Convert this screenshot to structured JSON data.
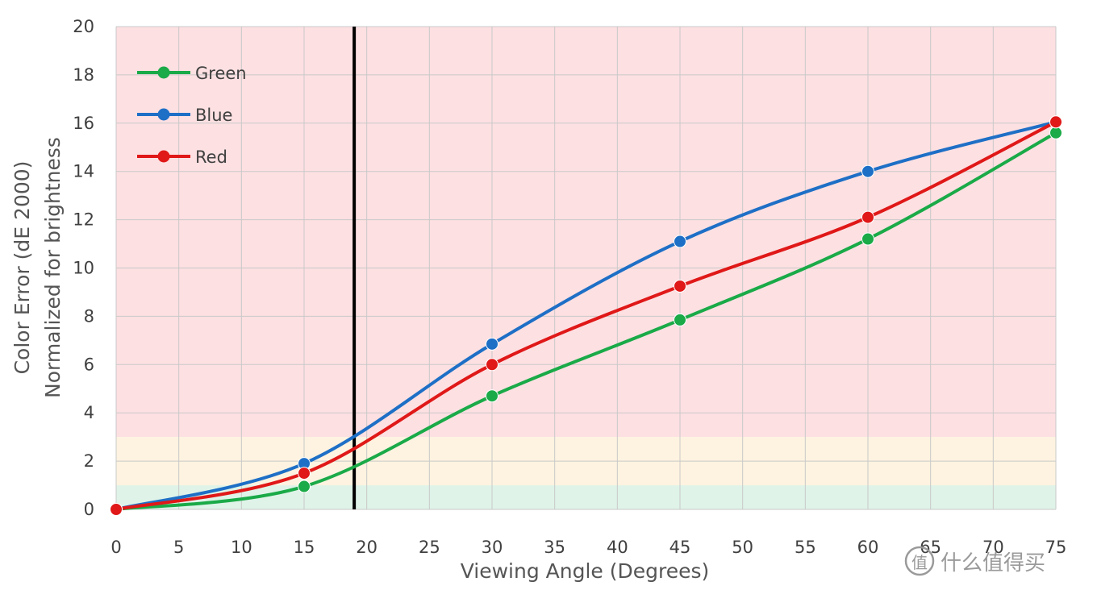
{
  "chart_data": {
    "type": "line",
    "title": "",
    "xlabel": "Viewing Angle (Degrees)",
    "ylabel_lines": [
      "Color Error (dE 2000)",
      "Normalized for brightness"
    ],
    "xlim": [
      0,
      75
    ],
    "ylim": [
      0,
      20
    ],
    "x_ticks": [
      0,
      5,
      10,
      15,
      20,
      25,
      30,
      35,
      40,
      45,
      50,
      55,
      60,
      65,
      70,
      75
    ],
    "y_ticks": [
      0,
      2,
      4,
      6,
      8,
      10,
      12,
      14,
      16,
      18,
      20
    ],
    "grid": true,
    "x": [
      0,
      15,
      30,
      45,
      60,
      75
    ],
    "series": [
      {
        "name": "Green",
        "color": "#1aaa48",
        "values": [
          0,
          0.95,
          4.7,
          7.85,
          11.2,
          15.6
        ]
      },
      {
        "name": "Blue",
        "color": "#1e6fc6",
        "values": [
          0,
          1.9,
          6.85,
          11.1,
          14.0,
          16.05
        ]
      },
      {
        "name": "Red",
        "color": "#e01818",
        "values": [
          0,
          1.5,
          6.0,
          9.25,
          12.1,
          16.05
        ]
      }
    ],
    "bands": [
      {
        "from": 0,
        "to": 1,
        "color": "#dff3e8"
      },
      {
        "from": 1,
        "to": 3,
        "color": "#fdf3e0"
      },
      {
        "from": 3,
        "to": 20,
        "color": "#fde0e2"
      }
    ],
    "reference_line": {
      "x": 19,
      "color": "#000000"
    },
    "legend_position": "top-left"
  },
  "watermark": {
    "glyph": "值",
    "text": "什么值得买"
  }
}
